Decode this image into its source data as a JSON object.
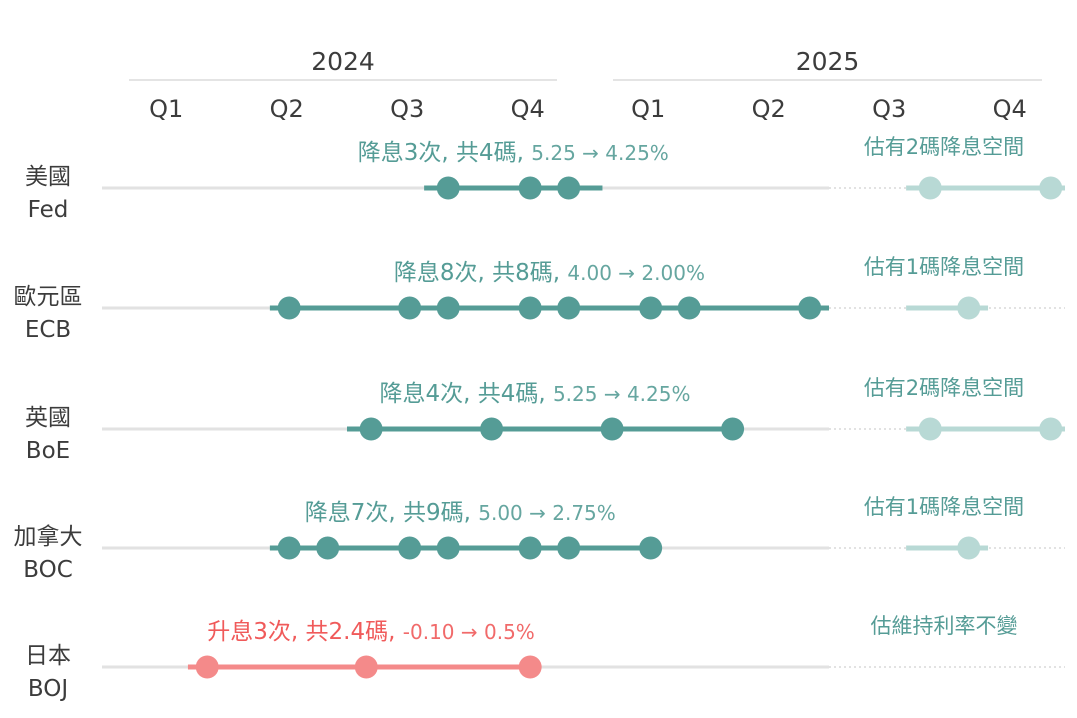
{
  "chart_data": {
    "type": "timeline",
    "years": [
      "2024",
      "2025"
    ],
    "quarters": [
      "Q1",
      "Q2",
      "Q3",
      "Q4",
      "Q1",
      "Q2",
      "Q3",
      "Q4"
    ],
    "colors": {
      "cut": "#559c96",
      "cut_light": "#b8d9d5",
      "hike": "#f48a8a",
      "hike_text": "#f05a5a",
      "baseline": "#e2e2e2",
      "text": "#3c3c3c"
    },
    "rows": [
      {
        "name": "美國",
        "code": "Fed",
        "summary_main": "降息3次, 共4碼,",
        "summary_rate": "5.25 → 4.25%",
        "forecast": "估有2碼降息空間",
        "kind": "cut",
        "bar": [
          2024.66,
          2025.03
        ],
        "points": [
          2024.71,
          2024.88,
          2024.96
        ],
        "forecast_points": [
          2025.71,
          2025.96
        ],
        "forecast_bar": [
          2025.66,
          2026.0
        ]
      },
      {
        "name": "歐元區",
        "code": "ECB",
        "summary_main": "降息8次, 共8碼,",
        "summary_rate": "4.00 → 2.00%",
        "forecast": "估有1碼降息空間",
        "kind": "cut",
        "bar": [
          2024.34,
          2025.5
        ],
        "points": [
          2024.38,
          2024.63,
          2024.71,
          2024.88,
          2024.96,
          2025.13,
          2025.21,
          2025.46
        ],
        "forecast_points": [
          2025.79
        ],
        "forecast_bar": [
          2025.66,
          2025.83
        ]
      },
      {
        "name": "英國",
        "code": "BoE",
        "summary_main": "降息4次, 共4碼,",
        "summary_rate": "5.25 → 4.25%",
        "forecast": "估有2碼降息空間",
        "kind": "cut",
        "bar": [
          2024.5,
          2025.28
        ],
        "points": [
          2024.55,
          2024.8,
          2025.05,
          2025.3
        ],
        "forecast_points": [
          2025.71,
          2025.96
        ],
        "forecast_bar": [
          2025.66,
          2026.0
        ]
      },
      {
        "name": "加拿大",
        "code": "BOC",
        "summary_main": "降息7次, 共9碼,",
        "summary_rate": "5.00 → 2.75%",
        "forecast": "估有1碼降息空間",
        "kind": "cut",
        "bar": [
          2024.34,
          2025.13
        ],
        "points": [
          2024.38,
          2024.46,
          2024.63,
          2024.71,
          2024.88,
          2024.96,
          2025.13
        ],
        "forecast_points": [
          2025.79
        ],
        "forecast_bar": [
          2025.66,
          2025.83
        ]
      },
      {
        "name": "日本",
        "code": "BOJ",
        "summary_main": "升息3次, 共2.4碼,",
        "summary_rate": "-0.10 → 0.5%",
        "forecast": "估維持利率不變",
        "kind": "hike",
        "bar": [
          2024.17,
          2024.88
        ],
        "points": [
          2024.21,
          2024.54,
          2024.88
        ],
        "forecast_points": [],
        "forecast_bar": []
      }
    ]
  }
}
